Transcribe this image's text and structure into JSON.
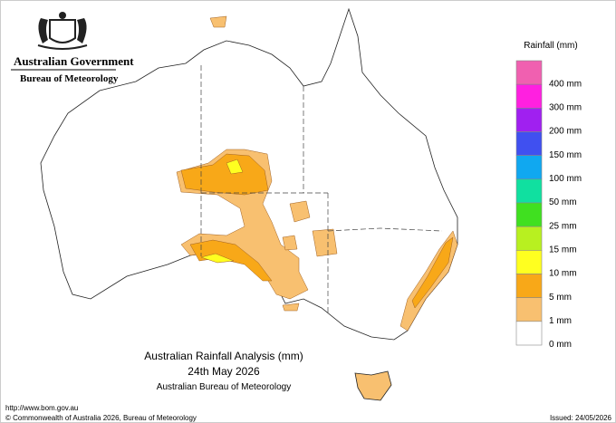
{
  "header": {
    "government": "Australian Government",
    "agency": "Bureau of Meteorology"
  },
  "legend": {
    "title": "Rainfall (mm)",
    "items": [
      {
        "label": "400 mm",
        "color": "#f060b0"
      },
      {
        "label": "300 mm",
        "color": "#ff20e0"
      },
      {
        "label": "200 mm",
        "color": "#a020f0"
      },
      {
        "label": "150 mm",
        "color": "#4050f0"
      },
      {
        "label": "100 mm",
        "color": "#10a8f0"
      },
      {
        "label": "50 mm",
        "color": "#10e0a0"
      },
      {
        "label": "25 mm",
        "color": "#40e020"
      },
      {
        "label": "15 mm",
        "color": "#b8f020"
      },
      {
        "label": "10 mm",
        "color": "#ffff20"
      },
      {
        "label": "5 mm",
        "color": "#f8a818"
      },
      {
        "label": "1 mm",
        "color": "#f8c070"
      },
      {
        "label": "0 mm",
        "color": "#ffffff"
      }
    ]
  },
  "caption": {
    "title": "Australian Rainfall Analysis (mm)",
    "date": "24th May 2026",
    "source": "Australian Bureau of Meteorology"
  },
  "footer": {
    "url": "http://www.bom.gov.au",
    "copyright": "© Commonwealth of Australia 2026, Bureau of Meteorology",
    "issued": "Issued: 24/05/2026"
  }
}
